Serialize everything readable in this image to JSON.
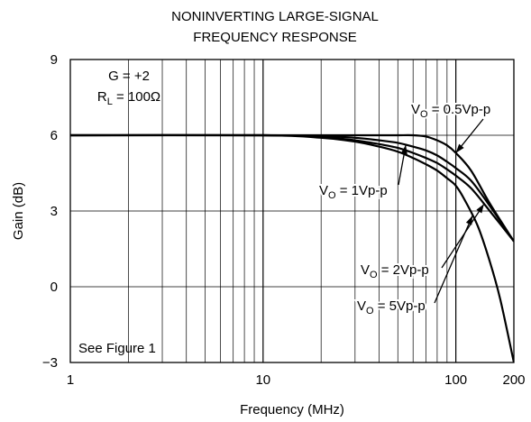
{
  "chart_data": {
    "type": "line",
    "title_lines": [
      "NONINVERTING LARGE-SIGNAL",
      "FREQUENCY RESPONSE"
    ],
    "xlabel": "Frequency (MHz)",
    "ylabel": "Gain (dB)",
    "x_scale": "log",
    "xlim": [
      1,
      200
    ],
    "ylim": [
      -3,
      9
    ],
    "x_tick_labels": [
      {
        "value": 1,
        "label": "1"
      },
      {
        "value": 10,
        "label": "10"
      },
      {
        "value": 100,
        "label": "100"
      },
      {
        "value": 200,
        "label": "200"
      }
    ],
    "y_tick_labels": [
      {
        "value": 9,
        "label": "9"
      },
      {
        "value": 6,
        "label": "6"
      },
      {
        "value": 3,
        "label": "3"
      },
      {
        "value": 0,
        "label": "0"
      },
      {
        "value": -3,
        "label": "−3"
      }
    ],
    "grid": true,
    "conditions": {
      "gain": {
        "prefix": "G = +2"
      },
      "load": {
        "main": "R",
        "sub": "L",
        "rest": " = 100Ω"
      },
      "note": "See Figure 1"
    },
    "series": [
      {
        "name_parts": {
          "main": "V",
          "sub": "O",
          "rest": " = 0.5Vp-p"
        },
        "x": [
          1,
          10,
          20,
          30,
          40,
          50,
          60,
          70,
          80,
          90,
          100,
          120,
          150,
          200
        ],
        "y": [
          6.0,
          6.0,
          6.0,
          6.0,
          6.0,
          6.0,
          6.0,
          5.95,
          5.8,
          5.6,
          5.3,
          4.6,
          3.3,
          1.8
        ]
      },
      {
        "name_parts": {
          "main": "V",
          "sub": "O",
          "rest": " = 1Vp-p"
        },
        "x": [
          1,
          10,
          20,
          30,
          40,
          50,
          60,
          70,
          80,
          90,
          100,
          120,
          150,
          200
        ],
        "y": [
          6.0,
          6.0,
          5.97,
          5.9,
          5.8,
          5.7,
          5.55,
          5.4,
          5.2,
          4.95,
          4.7,
          4.2,
          3.2,
          1.8
        ]
      },
      {
        "name_parts": {
          "main": "V",
          "sub": "O",
          "rest": " = 2Vp-p"
        },
        "x": [
          1,
          10,
          20,
          30,
          40,
          50,
          60,
          70,
          80,
          90,
          100,
          120,
          150,
          200
        ],
        "y": [
          6.0,
          6.0,
          5.93,
          5.8,
          5.65,
          5.5,
          5.3,
          5.1,
          4.9,
          4.65,
          4.4,
          3.9,
          3.0,
          1.8
        ]
      },
      {
        "name_parts": {
          "main": "V",
          "sub": "O",
          "rest": " = 5Vp-p"
        },
        "x": [
          1,
          10,
          20,
          30,
          40,
          50,
          60,
          70,
          80,
          90,
          100,
          110,
          130,
          150,
          170,
          200
        ],
        "y": [
          6.0,
          6.0,
          5.9,
          5.75,
          5.55,
          5.35,
          5.1,
          4.85,
          4.6,
          4.3,
          4.0,
          3.5,
          2.4,
          1.0,
          -0.5,
          -3.0
        ]
      }
    ]
  }
}
